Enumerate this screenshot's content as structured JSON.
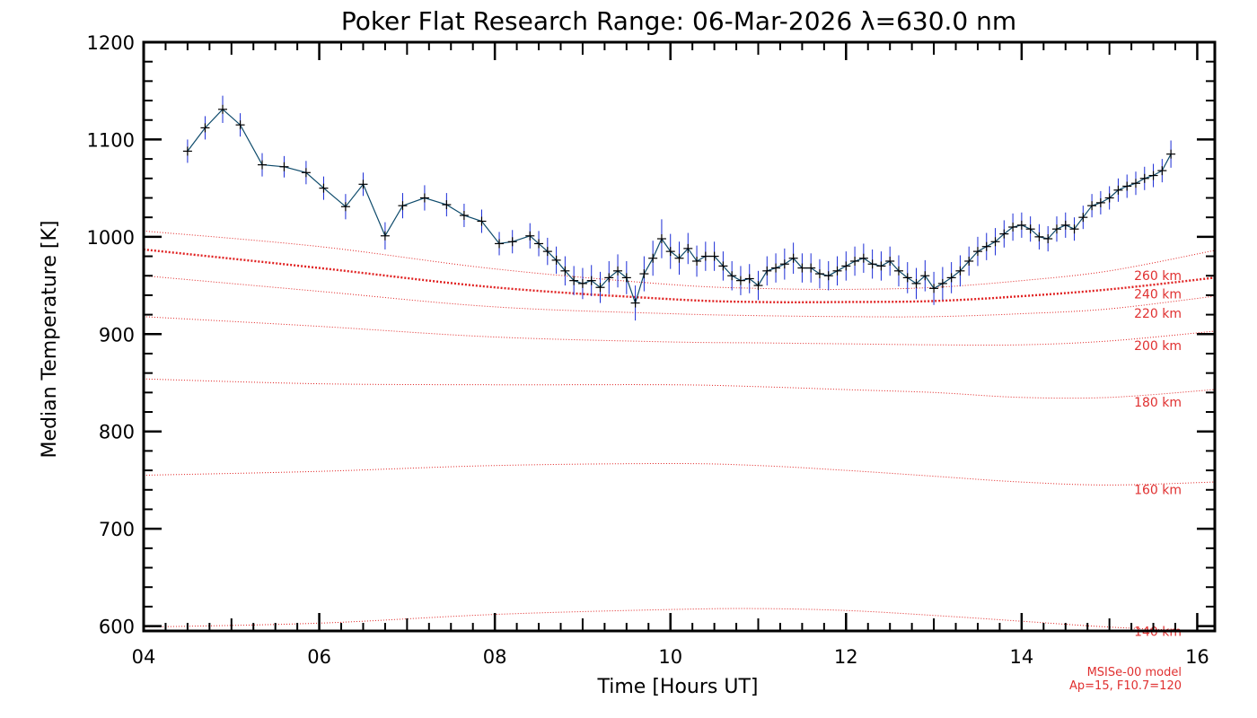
{
  "chart_data": {
    "type": "line",
    "title": "Poker Flat Research Range: 06-Mar-2026 λ=630.0 nm",
    "xlabel": "Time [Hours UT]",
    "ylabel": "Median Temperature [K]",
    "xlim": [
      4,
      16.2
    ],
    "ylim": [
      595,
      1200
    ],
    "xticks": [
      {
        "value": 4,
        "label": "04"
      },
      {
        "value": 6,
        "label": "06"
      },
      {
        "value": 8,
        "label": "08"
      },
      {
        "value": 10,
        "label": "10"
      },
      {
        "value": 12,
        "label": "12"
      },
      {
        "value": 14,
        "label": "14"
      },
      {
        "value": 16,
        "label": "16"
      }
    ],
    "yticks": [
      {
        "value": 600,
        "label": "600"
      },
      {
        "value": 700,
        "label": "700"
      },
      {
        "value": 800,
        "label": "800"
      },
      {
        "value": 900,
        "label": "900"
      },
      {
        "value": 1000,
        "label": "1000"
      },
      {
        "value": 1100,
        "label": "1100"
      },
      {
        "value": 1200,
        "label": "1200"
      }
    ],
    "colors": {
      "data": "#000000",
      "error_bars": "#1a2bd6",
      "model": "#e02020",
      "connector": "#0d4a6b"
    },
    "series": [
      {
        "name": "Measured median temperature",
        "x": [
          4.5,
          4.7,
          4.9,
          5.1,
          5.35,
          5.6,
          5.85,
          6.05,
          6.3,
          6.5,
          6.75,
          6.95,
          7.2,
          7.45,
          7.65,
          7.85,
          8.05,
          8.2,
          8.4,
          8.5,
          8.6,
          8.7,
          8.8,
          8.9,
          9.0,
          9.1,
          9.2,
          9.3,
          9.4,
          9.5,
          9.6,
          9.7,
          9.8,
          9.9,
          10.0,
          10.1,
          10.2,
          10.3,
          10.4,
          10.5,
          10.6,
          10.7,
          10.8,
          10.9,
          11.0,
          11.1,
          11.2,
          11.3,
          11.4,
          11.5,
          11.6,
          11.7,
          11.8,
          11.9,
          12.0,
          12.1,
          12.2,
          12.3,
          12.4,
          12.5,
          12.6,
          12.7,
          12.8,
          12.9,
          13.0,
          13.1,
          13.2,
          13.3,
          13.4,
          13.5,
          13.6,
          13.7,
          13.8,
          13.9,
          14.0,
          14.1,
          14.2,
          14.3,
          14.4,
          14.5,
          14.6,
          14.7,
          14.8,
          14.9,
          15.0,
          15.1,
          15.2,
          15.3,
          15.4,
          15.5,
          15.6,
          15.7
        ],
        "y": [
          1088,
          1112,
          1131,
          1115,
          1074,
          1072,
          1066,
          1050,
          1031,
          1054,
          1001,
          1032,
          1040,
          1033,
          1022,
          1016,
          993,
          995,
          1001,
          993,
          985,
          976,
          965,
          955,
          952,
          955,
          948,
          958,
          965,
          958,
          932,
          962,
          978,
          998,
          985,
          978,
          988,
          975,
          980,
          980,
          970,
          960,
          955,
          957,
          950,
          965,
          968,
          972,
          978,
          968,
          968,
          962,
          960,
          965,
          970,
          975,
          978,
          972,
          970,
          975,
          965,
          958,
          952,
          960,
          947,
          952,
          958,
          965,
          975,
          985,
          990,
          995,
          1003,
          1010,
          1012,
          1008,
          1000,
          998,
          1008,
          1012,
          1008,
          1020,
          1032,
          1035,
          1040,
          1048,
          1052,
          1055,
          1060,
          1063,
          1068,
          1085
        ],
        "error": [
          12,
          12,
          14,
          12,
          12,
          11,
          12,
          12,
          13,
          12,
          14,
          13,
          13,
          12,
          12,
          12,
          12,
          12,
          13,
          13,
          14,
          14,
          15,
          15,
          16,
          16,
          16,
          17,
          17,
          17,
          18,
          18,
          18,
          20,
          18,
          17,
          16,
          16,
          15,
          15,
          15,
          15,
          15,
          15,
          15,
          15,
          15,
          16,
          16,
          15,
          15,
          15,
          15,
          15,
          15,
          15,
          15,
          15,
          15,
          15,
          16,
          16,
          16,
          16,
          17,
          17,
          16,
          16,
          15,
          15,
          14,
          14,
          14,
          14,
          13,
          13,
          13,
          13,
          13,
          13,
          12,
          12,
          12,
          12,
          12,
          12,
          12,
          12,
          12,
          12,
          12,
          14
        ]
      }
    ],
    "model_curves": [
      {
        "label": "260 km",
        "x": [
          4,
          6,
          8,
          10,
          11,
          12,
          13,
          14,
          15,
          16.2
        ],
        "y": [
          1006,
          990,
          967,
          951,
          947,
          946,
          948,
          955,
          965,
          986
        ]
      },
      {
        "label": "240 km",
        "x": [
          4,
          6,
          8,
          10,
          11,
          12,
          13,
          14,
          15,
          16.2
        ],
        "y": [
          987,
          968,
          948,
          936,
          933,
          933,
          934,
          939,
          946,
          958
        ]
      },
      {
        "label": "220 km",
        "x": [
          4,
          6,
          8,
          10,
          11,
          12,
          13,
          14,
          15,
          16.2
        ],
        "y": [
          960,
          944,
          928,
          921,
          919,
          918,
          918,
          921,
          926,
          939
        ]
      },
      {
        "label": "200 km",
        "x": [
          4,
          6,
          8,
          10,
          11,
          12,
          13,
          14,
          15,
          16.2
        ],
        "y": [
          918,
          908,
          897,
          892,
          891,
          890,
          889,
          889,
          893,
          903
        ]
      },
      {
        "label": "180 km",
        "x": [
          4,
          6,
          8,
          10,
          11,
          12,
          13,
          14,
          15,
          16.2
        ],
        "y": [
          854,
          849,
          848,
          848,
          846,
          843,
          840,
          835,
          835,
          843
        ]
      },
      {
        "label": "160 km",
        "x": [
          4,
          6,
          8,
          10,
          11,
          12,
          13,
          14,
          15,
          16.2
        ],
        "y": [
          755,
          759,
          765,
          767,
          765,
          760,
          754,
          748,
          745,
          748
        ]
      },
      {
        "label": "140 km",
        "x": [
          4,
          6,
          8,
          10,
          11,
          12,
          13,
          14,
          15,
          16.2
        ],
        "y": [
          599,
          603,
          612,
          617,
          618,
          616,
          611,
          605,
          599,
          594
        ]
      }
    ],
    "footnote": {
      "line1": "MSISe-00 model",
      "line2": "Ap=15, F10.7=120"
    }
  }
}
